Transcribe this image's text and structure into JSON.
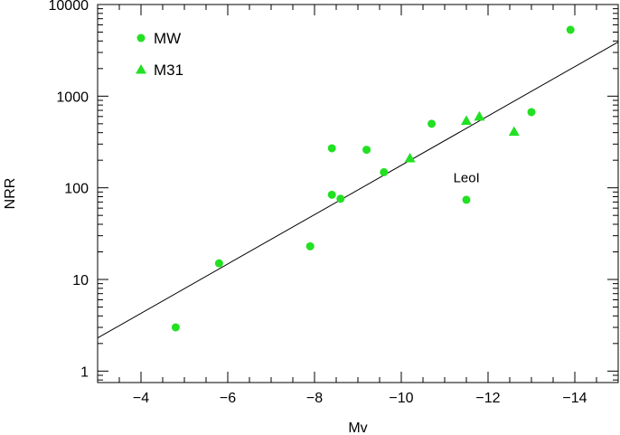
{
  "chart_data": {
    "type": "scatter",
    "title": "",
    "xlabel": "Mv",
    "ylabel": "NRR",
    "xlim": [
      -3,
      -15
    ],
    "ylim": [
      0.75,
      10000
    ],
    "y_scale": "log",
    "x_ticks": [
      -4,
      -6,
      -8,
      -10,
      -12,
      -14
    ],
    "x_tick_labels": [
      "−4",
      "−6",
      "−8",
      "−10",
      "−12",
      "−14"
    ],
    "y_ticks": [
      1,
      10,
      100,
      1000,
      10000
    ],
    "y_tick_labels": [
      "1",
      "10",
      "100",
      "1000",
      "10000"
    ],
    "legend_position": "top-left",
    "colors": {
      "points": "#22e022",
      "axes": "#000000",
      "fit_line": "#000000"
    },
    "series": [
      {
        "name": "MW",
        "marker": "circle",
        "points": [
          {
            "x": -4.8,
            "y": 3
          },
          {
            "x": -5.8,
            "y": 15
          },
          {
            "x": -7.9,
            "y": 23
          },
          {
            "x": -8.4,
            "y": 270
          },
          {
            "x": -8.4,
            "y": 84
          },
          {
            "x": -8.6,
            "y": 76
          },
          {
            "x": -9.2,
            "y": 260
          },
          {
            "x": -9.6,
            "y": 148
          },
          {
            "x": -10.7,
            "y": 500
          },
          {
            "x": -11.5,
            "y": 74
          },
          {
            "x": -13.0,
            "y": 670
          },
          {
            "x": -13.9,
            "y": 5300
          }
        ]
      },
      {
        "name": "M31",
        "marker": "triangle",
        "points": [
          {
            "x": -10.2,
            "y": 210
          },
          {
            "x": -11.5,
            "y": 540
          },
          {
            "x": -11.8,
            "y": 600
          },
          {
            "x": -12.6,
            "y": 410
          }
        ]
      }
    ],
    "fit_line": {
      "from": {
        "x": -3,
        "y": 2.3
      },
      "to": {
        "x": -15,
        "y": 3900
      }
    },
    "annotations": [
      {
        "text": "LeoI",
        "x": -11.2,
        "y": 115
      }
    ]
  }
}
